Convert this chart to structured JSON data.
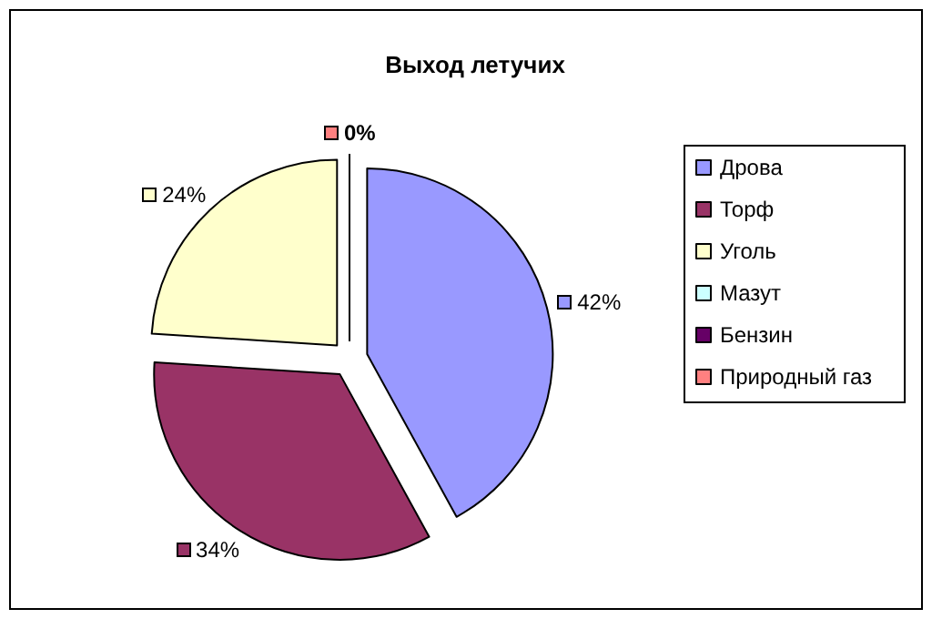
{
  "chart_data": {
    "type": "pie",
    "title": "Выход летучих",
    "categories": [
      "Дрова",
      "Торф",
      "Уголь",
      "Мазут",
      "Бензин",
      "Природный газ"
    ],
    "values": [
      42,
      34,
      24,
      0,
      0,
      0
    ],
    "colors": [
      "#9999ff",
      "#993366",
      "#ffffcc",
      "#ccffff",
      "#660066",
      "#ff8080"
    ],
    "value_labels": [
      "42%",
      "34%",
      "24%",
      null,
      null,
      "0%"
    ],
    "legend": "right"
  }
}
